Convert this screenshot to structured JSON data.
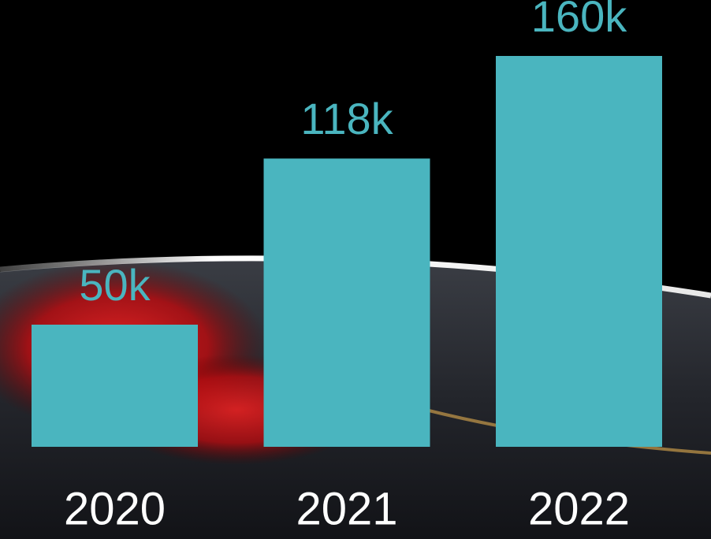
{
  "chart_data": {
    "type": "bar",
    "categories": [
      "2020",
      "2021",
      "2022"
    ],
    "values": [
      50,
      118,
      160
    ],
    "value_labels": [
      "50k",
      "118k",
      "160k"
    ],
    "color": "#4ab5bf"
  }
}
